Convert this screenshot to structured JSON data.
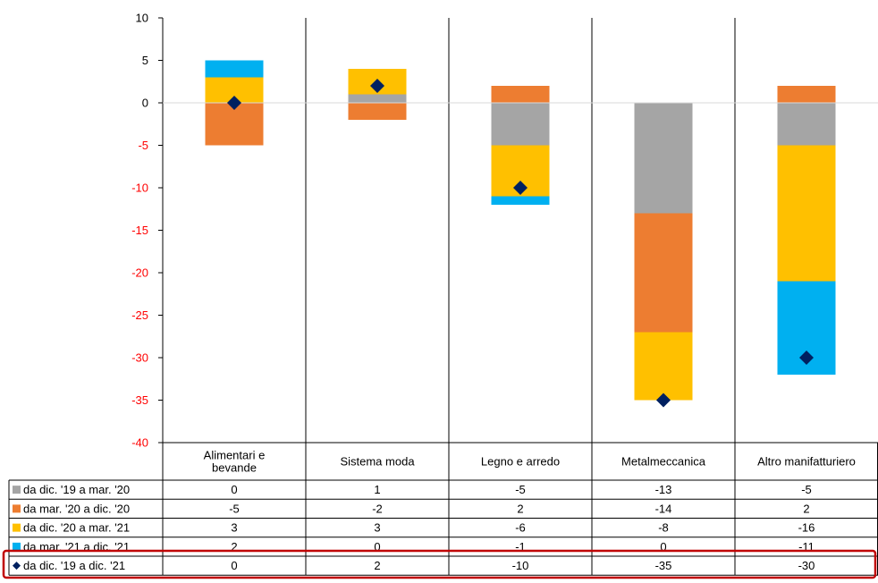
{
  "chart_data": {
    "type": "bar",
    "stacked": true,
    "categories": [
      [
        "Alimentari e",
        "bevande"
      ],
      [
        "Sistema moda"
      ],
      [
        "Legno e arredo"
      ],
      [
        "Metalmeccanica"
      ],
      [
        "Altro manifatturiero"
      ]
    ],
    "ylim": [
      -40,
      10
    ],
    "yticks": [
      10,
      5,
      0,
      -5,
      -10,
      -15,
      -20,
      -25,
      -30,
      -35,
      -40
    ],
    "series": [
      {
        "name": "da dic. '19 a mar. '20",
        "color": "#a5a5a5",
        "kind": "bar",
        "values": [
          0,
          1,
          -5,
          -13,
          -5
        ]
      },
      {
        "name": "da mar. '20 a dic. '20",
        "color": "#ed7d31",
        "kind": "bar",
        "values": [
          -5,
          -2,
          2,
          -14,
          2
        ]
      },
      {
        "name": "da dic. '20 a mar. '21",
        "color": "#ffc000",
        "kind": "bar",
        "values": [
          3,
          3,
          -6,
          -8,
          -16
        ]
      },
      {
        "name": "da mar. '21 a dic. '21",
        "color": "#00b0f0",
        "kind": "bar",
        "values": [
          2,
          0,
          -1,
          0,
          -11
        ]
      },
      {
        "name": "da dic. '19 a dic. '21",
        "color": "#002060",
        "kind": "marker",
        "values": [
          0,
          2,
          -10,
          -35,
          -30
        ]
      }
    ],
    "table_labels": [
      [
        "0",
        "1",
        "-5",
        "-13",
        "-5"
      ],
      [
        "-5",
        "-2",
        "2",
        "-14",
        "2"
      ],
      [
        "3",
        "3",
        "-6",
        "-8",
        "-16"
      ],
      [
        "2",
        "0",
        "-1",
        "0",
        "-11"
      ],
      [
        "0",
        "2",
        "-10",
        "-35",
        "-30"
      ]
    ],
    "highlight_row": 4,
    "highlight_color": "#c00000",
    "negative_tick_color": "#ff0000"
  }
}
